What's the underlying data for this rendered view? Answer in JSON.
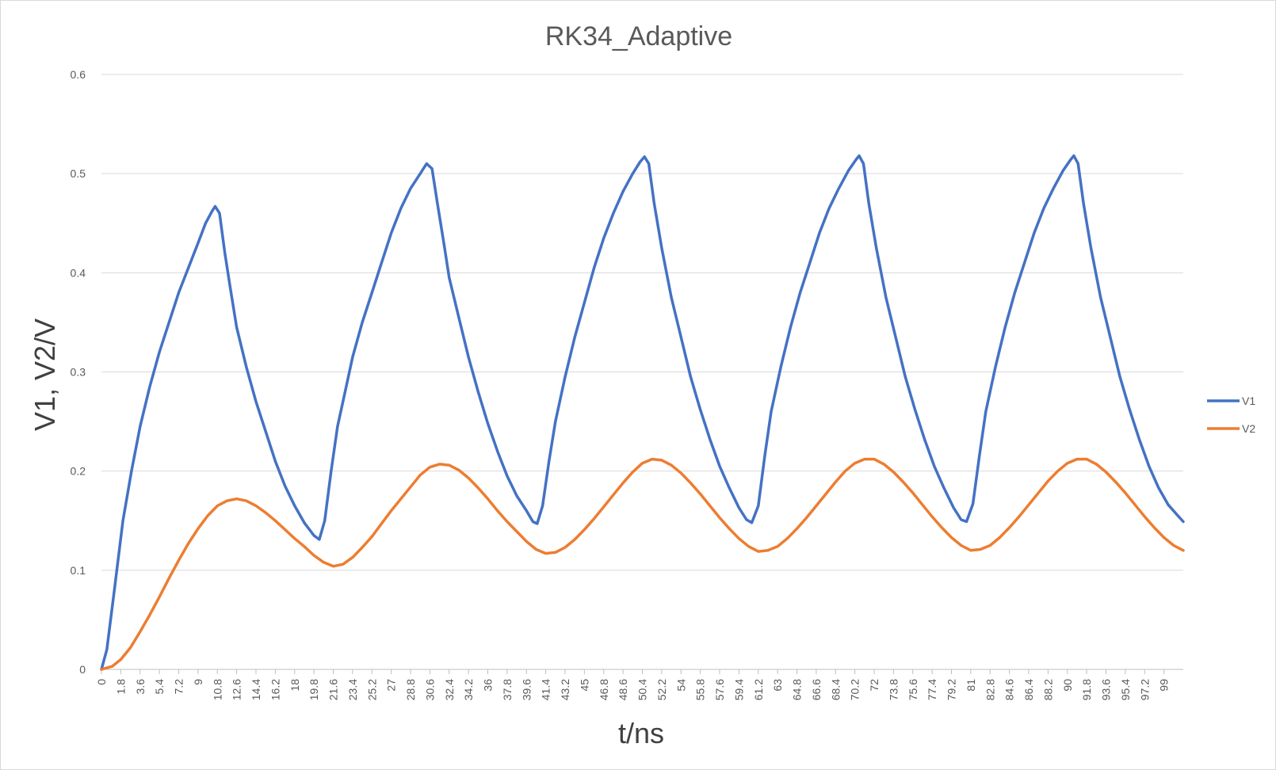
{
  "chart_data": {
    "type": "line",
    "title": "RK34_Adaptive",
    "xlabel": "t/ns",
    "ylabel": "V1, V2/V",
    "x_range": [
      0,
      100.8
    ],
    "x_tick_step": 1.8,
    "x_tick_labels": [
      "0",
      "1.8",
      "3.6",
      "5.4",
      "7.2",
      "9",
      "10.8",
      "12.6",
      "14.4",
      "16.2",
      "18",
      "19.8",
      "21.6",
      "23.4",
      "25.2",
      "27",
      "28.8",
      "30.6",
      "32.4",
      "34.2",
      "36",
      "37.8",
      "39.6",
      "41.4",
      "43.2",
      "45",
      "46.8",
      "48.6",
      "50.4",
      "52.2",
      "54",
      "55.8",
      "57.6",
      "59.4",
      "61.2",
      "63",
      "64.8",
      "66.6",
      "68.4",
      "70.2",
      "72",
      "73.8",
      "75.6",
      "77.4",
      "79.2",
      "81",
      "82.8",
      "84.6",
      "86.4",
      "88.2",
      "90",
      "91.8",
      "93.6",
      "95.4",
      "97.2",
      "99"
    ],
    "ylim": [
      0,
      0.6
    ],
    "y_ticks": [
      0,
      0.1,
      0.2,
      0.3,
      0.4,
      0.5,
      0.6
    ],
    "y_tick_labels": [
      "0",
      "0.1",
      "0.2",
      "0.3",
      "0.4",
      "0.5",
      "0.6"
    ],
    "grid": true,
    "legend_position": "right",
    "series": [
      {
        "name": "V1",
        "color": "#4472c4",
        "points": [
          [
            0,
            0
          ],
          [
            0.5,
            0.02
          ],
          [
            1.2,
            0.08
          ],
          [
            2,
            0.15
          ],
          [
            2.8,
            0.2
          ],
          [
            3.6,
            0.245
          ],
          [
            4.5,
            0.285
          ],
          [
            5.4,
            0.32
          ],
          [
            6.3,
            0.35
          ],
          [
            7.2,
            0.38
          ],
          [
            8.1,
            0.405
          ],
          [
            9,
            0.43
          ],
          [
            9.7,
            0.45
          ],
          [
            10.3,
            0.462
          ],
          [
            10.6,
            0.467
          ],
          [
            11,
            0.46
          ],
          [
            11.5,
            0.42
          ],
          [
            12,
            0.385
          ],
          [
            12.6,
            0.345
          ],
          [
            13.5,
            0.305
          ],
          [
            14.4,
            0.27
          ],
          [
            15.3,
            0.24
          ],
          [
            16.2,
            0.21
          ],
          [
            17.1,
            0.185
          ],
          [
            18,
            0.165
          ],
          [
            18.9,
            0.148
          ],
          [
            19.8,
            0.135
          ],
          [
            20.3,
            0.131
          ],
          [
            20.8,
            0.15
          ],
          [
            21.4,
            0.2
          ],
          [
            22,
            0.245
          ],
          [
            22.8,
            0.285
          ],
          [
            23.4,
            0.315
          ],
          [
            24.3,
            0.35
          ],
          [
            25.2,
            0.38
          ],
          [
            26.1,
            0.41
          ],
          [
            27,
            0.44
          ],
          [
            27.9,
            0.465
          ],
          [
            28.8,
            0.485
          ],
          [
            29.7,
            0.5
          ],
          [
            30.3,
            0.51
          ],
          [
            30.8,
            0.505
          ],
          [
            31.3,
            0.47
          ],
          [
            31.9,
            0.43
          ],
          [
            32.4,
            0.395
          ],
          [
            33.3,
            0.355
          ],
          [
            34.2,
            0.315
          ],
          [
            35.1,
            0.28
          ],
          [
            36,
            0.248
          ],
          [
            36.9,
            0.22
          ],
          [
            37.8,
            0.195
          ],
          [
            38.7,
            0.175
          ],
          [
            39.6,
            0.16
          ],
          [
            40.2,
            0.149
          ],
          [
            40.6,
            0.147
          ],
          [
            41.1,
            0.165
          ],
          [
            41.7,
            0.21
          ],
          [
            42.3,
            0.25
          ],
          [
            43.2,
            0.295
          ],
          [
            44.1,
            0.335
          ],
          [
            45,
            0.37
          ],
          [
            45.9,
            0.405
          ],
          [
            46.8,
            0.435
          ],
          [
            47.7,
            0.46
          ],
          [
            48.6,
            0.482
          ],
          [
            49.5,
            0.5
          ],
          [
            50.2,
            0.512
          ],
          [
            50.6,
            0.517
          ],
          [
            51,
            0.51
          ],
          [
            51.5,
            0.47
          ],
          [
            52.2,
            0.425
          ],
          [
            53.1,
            0.375
          ],
          [
            54,
            0.335
          ],
          [
            54.9,
            0.295
          ],
          [
            55.8,
            0.262
          ],
          [
            56.7,
            0.232
          ],
          [
            57.6,
            0.205
          ],
          [
            58.5,
            0.183
          ],
          [
            59.4,
            0.163
          ],
          [
            60.1,
            0.151
          ],
          [
            60.6,
            0.148
          ],
          [
            61.2,
            0.165
          ],
          [
            61.8,
            0.215
          ],
          [
            62.4,
            0.26
          ],
          [
            63.3,
            0.305
          ],
          [
            64.2,
            0.345
          ],
          [
            65.1,
            0.38
          ],
          [
            66,
            0.41
          ],
          [
            66.9,
            0.44
          ],
          [
            67.8,
            0.465
          ],
          [
            68.7,
            0.485
          ],
          [
            69.6,
            0.503
          ],
          [
            70.3,
            0.514
          ],
          [
            70.6,
            0.518
          ],
          [
            71,
            0.51
          ],
          [
            71.5,
            0.47
          ],
          [
            72.2,
            0.425
          ],
          [
            73.1,
            0.375
          ],
          [
            74,
            0.335
          ],
          [
            74.9,
            0.295
          ],
          [
            75.8,
            0.262
          ],
          [
            76.7,
            0.232
          ],
          [
            77.6,
            0.205
          ],
          [
            78.5,
            0.183
          ],
          [
            79.4,
            0.163
          ],
          [
            80.1,
            0.151
          ],
          [
            80.6,
            0.149
          ],
          [
            81.2,
            0.167
          ],
          [
            81.8,
            0.215
          ],
          [
            82.4,
            0.26
          ],
          [
            83.3,
            0.305
          ],
          [
            84.2,
            0.345
          ],
          [
            85.1,
            0.38
          ],
          [
            86,
            0.41
          ],
          [
            86.9,
            0.44
          ],
          [
            87.8,
            0.465
          ],
          [
            88.7,
            0.485
          ],
          [
            89.6,
            0.503
          ],
          [
            90.3,
            0.514
          ],
          [
            90.6,
            0.518
          ],
          [
            91,
            0.51
          ],
          [
            91.5,
            0.47
          ],
          [
            92.2,
            0.425
          ],
          [
            93.1,
            0.375
          ],
          [
            94,
            0.335
          ],
          [
            94.9,
            0.295
          ],
          [
            95.8,
            0.262
          ],
          [
            96.7,
            0.232
          ],
          [
            97.6,
            0.205
          ],
          [
            98.5,
            0.183
          ],
          [
            99.4,
            0.166
          ],
          [
            100.3,
            0.155
          ],
          [
            100.8,
            0.149
          ]
        ]
      },
      {
        "name": "V2",
        "color": "#ed7d31",
        "points": [
          [
            0,
            0
          ],
          [
            1,
            0.003
          ],
          [
            1.8,
            0.01
          ],
          [
            2.7,
            0.022
          ],
          [
            3.6,
            0.038
          ],
          [
            4.5,
            0.055
          ],
          [
            5.4,
            0.073
          ],
          [
            6.3,
            0.092
          ],
          [
            7.2,
            0.11
          ],
          [
            8.1,
            0.127
          ],
          [
            9,
            0.142
          ],
          [
            9.9,
            0.155
          ],
          [
            10.8,
            0.165
          ],
          [
            11.7,
            0.17
          ],
          [
            12.6,
            0.172
          ],
          [
            13.5,
            0.17
          ],
          [
            14.4,
            0.165
          ],
          [
            15.3,
            0.158
          ],
          [
            16.2,
            0.15
          ],
          [
            17.1,
            0.141
          ],
          [
            18,
            0.132
          ],
          [
            18.9,
            0.124
          ],
          [
            19.8,
            0.115
          ],
          [
            20.7,
            0.108
          ],
          [
            21.6,
            0.104
          ],
          [
            22.5,
            0.106
          ],
          [
            23.4,
            0.113
          ],
          [
            24.3,
            0.123
          ],
          [
            25.2,
            0.134
          ],
          [
            26.1,
            0.147
          ],
          [
            27,
            0.16
          ],
          [
            27.9,
            0.172
          ],
          [
            28.8,
            0.184
          ],
          [
            29.7,
            0.196
          ],
          [
            30.6,
            0.204
          ],
          [
            31.5,
            0.207
          ],
          [
            32.4,
            0.206
          ],
          [
            33.3,
            0.201
          ],
          [
            34.2,
            0.193
          ],
          [
            35.1,
            0.183
          ],
          [
            36,
            0.172
          ],
          [
            36.9,
            0.16
          ],
          [
            37.8,
            0.149
          ],
          [
            38.7,
            0.139
          ],
          [
            39.6,
            0.129
          ],
          [
            40.5,
            0.121
          ],
          [
            41.4,
            0.117
          ],
          [
            42.3,
            0.118
          ],
          [
            43.2,
            0.123
          ],
          [
            44.1,
            0.131
          ],
          [
            45,
            0.141
          ],
          [
            45.9,
            0.152
          ],
          [
            46.8,
            0.164
          ],
          [
            47.7,
            0.176
          ],
          [
            48.6,
            0.188
          ],
          [
            49.5,
            0.199
          ],
          [
            50.4,
            0.208
          ],
          [
            51.3,
            0.212
          ],
          [
            52.2,
            0.211
          ],
          [
            53.1,
            0.206
          ],
          [
            54,
            0.198
          ],
          [
            54.9,
            0.188
          ],
          [
            55.8,
            0.177
          ],
          [
            56.7,
            0.165
          ],
          [
            57.6,
            0.153
          ],
          [
            58.5,
            0.142
          ],
          [
            59.4,
            0.132
          ],
          [
            60.3,
            0.124
          ],
          [
            61.2,
            0.119
          ],
          [
            62.1,
            0.12
          ],
          [
            63,
            0.124
          ],
          [
            63.9,
            0.132
          ],
          [
            64.8,
            0.142
          ],
          [
            65.7,
            0.153
          ],
          [
            66.6,
            0.165
          ],
          [
            67.5,
            0.177
          ],
          [
            68.4,
            0.189
          ],
          [
            69.3,
            0.2
          ],
          [
            70.2,
            0.208
          ],
          [
            71.1,
            0.212
          ],
          [
            72,
            0.212
          ],
          [
            72.9,
            0.207
          ],
          [
            73.8,
            0.199
          ],
          [
            74.7,
            0.189
          ],
          [
            75.6,
            0.178
          ],
          [
            76.5,
            0.166
          ],
          [
            77.4,
            0.154
          ],
          [
            78.3,
            0.143
          ],
          [
            79.2,
            0.133
          ],
          [
            80.1,
            0.125
          ],
          [
            81,
            0.12
          ],
          [
            81.9,
            0.121
          ],
          [
            82.8,
            0.125
          ],
          [
            83.7,
            0.133
          ],
          [
            84.6,
            0.143
          ],
          [
            85.5,
            0.154
          ],
          [
            86.4,
            0.166
          ],
          [
            87.3,
            0.178
          ],
          [
            88.2,
            0.19
          ],
          [
            89.1,
            0.2
          ],
          [
            90,
            0.208
          ],
          [
            90.9,
            0.212
          ],
          [
            91.8,
            0.212
          ],
          [
            92.7,
            0.207
          ],
          [
            93.6,
            0.199
          ],
          [
            94.5,
            0.189
          ],
          [
            95.4,
            0.178
          ],
          [
            96.3,
            0.166
          ],
          [
            97.2,
            0.154
          ],
          [
            98.1,
            0.143
          ],
          [
            99,
            0.133
          ],
          [
            99.9,
            0.125
          ],
          [
            100.8,
            0.12
          ]
        ]
      }
    ]
  }
}
